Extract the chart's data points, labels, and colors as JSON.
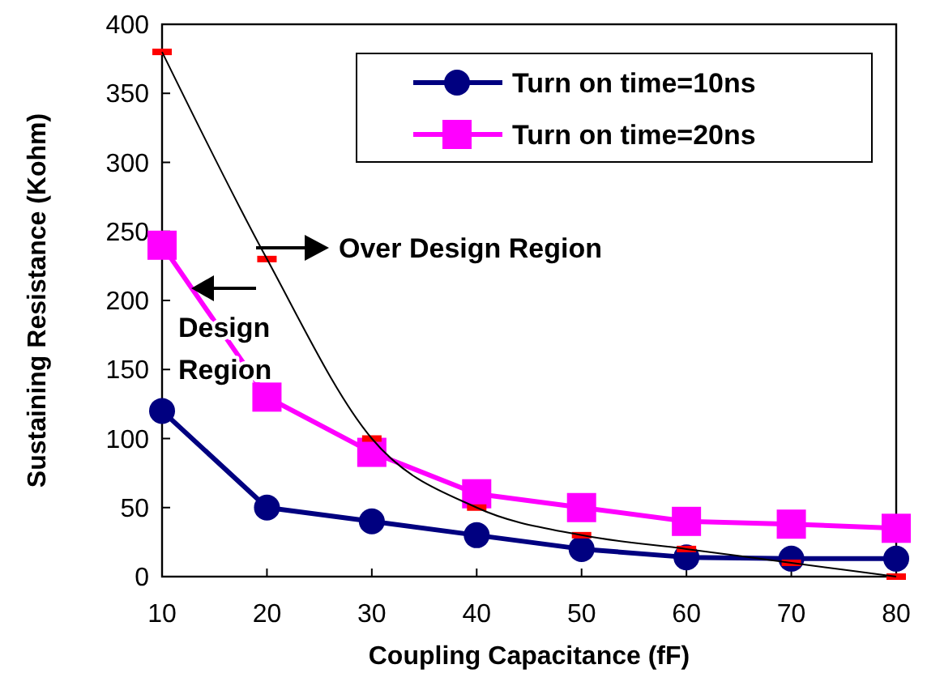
{
  "chart_data": {
    "type": "line",
    "xlabel": "Coupling Capacitance (fF)",
    "ylabel": "Sustaining Resistance (Kohm)",
    "x": [
      10,
      20,
      30,
      40,
      50,
      60,
      70,
      80
    ],
    "series": [
      {
        "name": "Turn on time=10ns",
        "color": "#000080",
        "marker": "circle",
        "values": [
          120,
          50,
          40,
          30,
          20,
          14,
          13,
          13
        ]
      },
      {
        "name": "Turn on time=20ns",
        "color": "#ff00ff",
        "marker": "square",
        "values": [
          240,
          130,
          90,
          60,
          50,
          40,
          38,
          35
        ]
      },
      {
        "color": "#000000",
        "marker": "none",
        "values": [
          380,
          230,
          100,
          50,
          30,
          20,
          10,
          0
        ]
      },
      {
        "type": "scatter",
        "color": "#ff0000",
        "marker": "square",
        "values": [
          380,
          230,
          100,
          50,
          30,
          20,
          10,
          0
        ]
      }
    ],
    "xlim": [
      10,
      80
    ],
    "xticks": [
      10,
      20,
      30,
      40,
      50,
      60,
      70,
      80
    ],
    "ylim": [
      0,
      400
    ],
    "yticks": [
      0,
      50,
      100,
      150,
      200,
      250,
      300,
      350,
      400
    ],
    "grid": false,
    "legend": "top right",
    "annotations": [
      "Over Design Region",
      "Design Region"
    ]
  }
}
